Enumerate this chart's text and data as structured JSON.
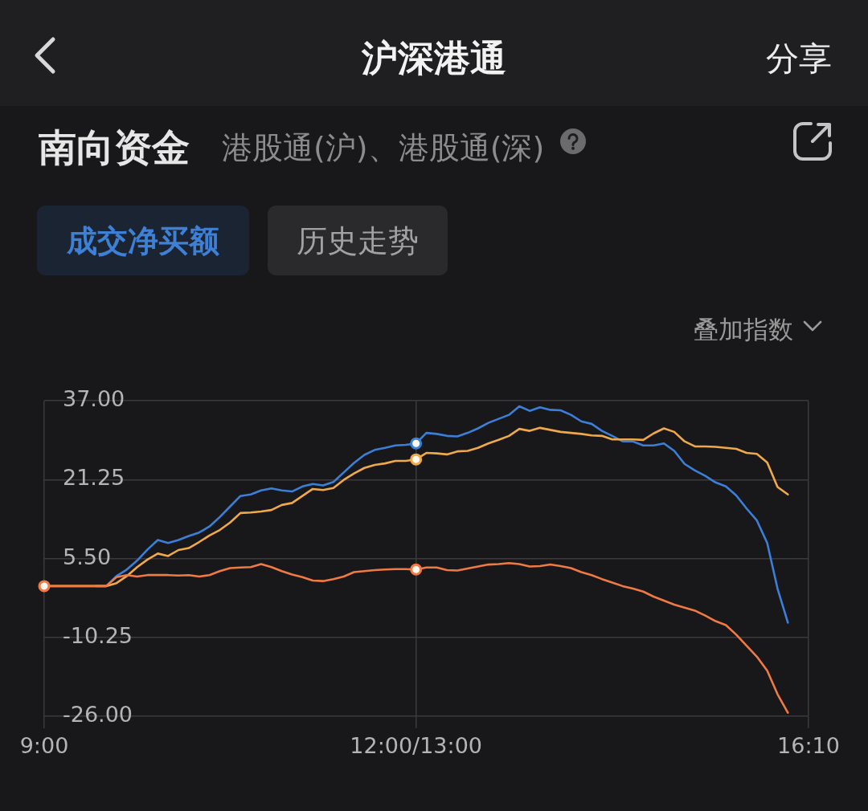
{
  "chart_data": {
    "type": "line",
    "title": "南向资金",
    "subtitle": "港股通(沪)、港股通(深)",
    "annotations": [
      "沪深港通",
      "分享",
      "成交净买额",
      "历史走势",
      "叠加指数"
    ],
    "categories": [
      "9:00",
      null,
      null,
      null,
      null,
      null,
      null,
      null,
      null,
      null,
      null,
      null,
      null,
      null,
      null,
      null,
      null,
      null,
      null,
      null,
      null,
      null,
      null,
      null,
      null,
      null,
      null,
      null,
      null,
      null,
      null,
      null,
      null,
      null,
      null,
      null,
      "12:00/13:00",
      null,
      null,
      null,
      null,
      null,
      null,
      null,
      null,
      null,
      null,
      null,
      null,
      null,
      null,
      null,
      null,
      null,
      null,
      null,
      null,
      null,
      null,
      null,
      null,
      null,
      null,
      null,
      null,
      null,
      null,
      null,
      null,
      null,
      null,
      null,
      null,
      null,
      "16:10"
    ],
    "ylim": [
      -26,
      37
    ],
    "yticks": [
      {
        "value": 37,
        "label": "37.00"
      },
      {
        "value": 21.25,
        "label": "21.25"
      },
      {
        "value": 5.5,
        "label": "5.50"
      },
      {
        "value": -10.25,
        "label": "-10.25"
      },
      {
        "value": -26,
        "label": "-26.00"
      }
    ],
    "grid": true,
    "legend": false,
    "series": [
      {
        "color": "#3b7fd9",
        "values": [
          null,
          null,
          null,
          null,
          null,
          0,
          0,
          2.0,
          3.3,
          5.1,
          7.3,
          9.2,
          8.6,
          9.2,
          10.0,
          10.7,
          11.9,
          13.8,
          15.9,
          18.0,
          18.3,
          19.1,
          19.5,
          19.1,
          18.9,
          19.9,
          20.4,
          20.1,
          20.8,
          22.7,
          24.6,
          26.2,
          27.2,
          27.6,
          28.1,
          28.2,
          28.5,
          30.6,
          30.4,
          30.0,
          29.9,
          30.6,
          31.5,
          32.6,
          33.4,
          34.2,
          35.9,
          35.0,
          35.7,
          35.2,
          35.1,
          34.2,
          32.9,
          32.4,
          31.0,
          30.0,
          28.9,
          28.9,
          28.1,
          28.1,
          28.5,
          27.0,
          24.4,
          23.1,
          22.0,
          20.7,
          19.9,
          18.1,
          15.5,
          13.1,
          8.6,
          -0.5,
          -7.3,
          null,
          null
        ]
      },
      {
        "color": "#f0a948",
        "values": [
          0,
          0,
          0,
          0,
          0,
          0,
          0,
          0.6,
          2.0,
          3.8,
          5.3,
          6.5,
          6.0,
          7.2,
          7.6,
          8.8,
          10.1,
          11.2,
          12.7,
          14.6,
          14.7,
          14.9,
          15.2,
          16.2,
          16.6,
          18.0,
          19.4,
          19.2,
          19.6,
          21.2,
          22.5,
          23.6,
          24.2,
          24.5,
          25.0,
          25.0,
          25.3,
          26.6,
          26.5,
          26.3,
          26.9,
          27.0,
          27.6,
          28.5,
          29.2,
          30.0,
          31.4,
          31.0,
          31.6,
          31.2,
          30.8,
          30.6,
          30.4,
          30.1,
          30.0,
          29.3,
          29.3,
          29.3,
          29.2,
          30.5,
          31.5,
          30.8,
          28.9,
          27.9,
          27.9,
          27.8,
          27.6,
          27.4,
          26.6,
          26.4,
          24.7,
          19.8,
          18.3,
          null,
          null
        ]
      },
      {
        "color": "#ef7a44",
        "values": [
          0,
          0,
          0,
          0,
          0,
          0,
          0,
          1.8,
          2.2,
          1.9,
          2.2,
          2.2,
          2.2,
          2.1,
          2.2,
          1.9,
          2.2,
          3.0,
          3.6,
          3.7,
          3.8,
          4.4,
          3.8,
          3.0,
          2.3,
          1.8,
          1.1,
          1.0,
          1.4,
          1.9,
          2.8,
          3.0,
          3.2,
          3.3,
          3.4,
          3.4,
          3.3,
          3.7,
          3.7,
          3.2,
          3.1,
          3.5,
          3.9,
          4.3,
          4.4,
          4.6,
          4.4,
          3.9,
          4.0,
          4.3,
          4.0,
          3.6,
          2.8,
          2.2,
          1.4,
          0.7,
          0.0,
          -0.5,
          -1.1,
          -2.1,
          -2.9,
          -3.7,
          -4.3,
          -4.9,
          -5.9,
          -7.0,
          -7.8,
          -9.7,
          -11.9,
          -14.1,
          -16.9,
          -21.6,
          -25.3,
          null,
          null
        ]
      },
      {
        "type": "scatter",
        "marker": "circle",
        "color": "#3b7fd9",
        "x": [
          "12:00/13:00"
        ],
        "values": [
          28.5
        ]
      },
      {
        "type": "scatter",
        "marker": "circle",
        "color": "#f0a948",
        "x": [
          "12:00/13:00"
        ],
        "values": [
          25.3
        ]
      },
      {
        "type": "scatter",
        "marker": "circle",
        "color": "#ef7a44",
        "x": [
          "9:00",
          "12:00/13:00"
        ],
        "values": [
          0,
          3.3
        ]
      }
    ]
  }
}
